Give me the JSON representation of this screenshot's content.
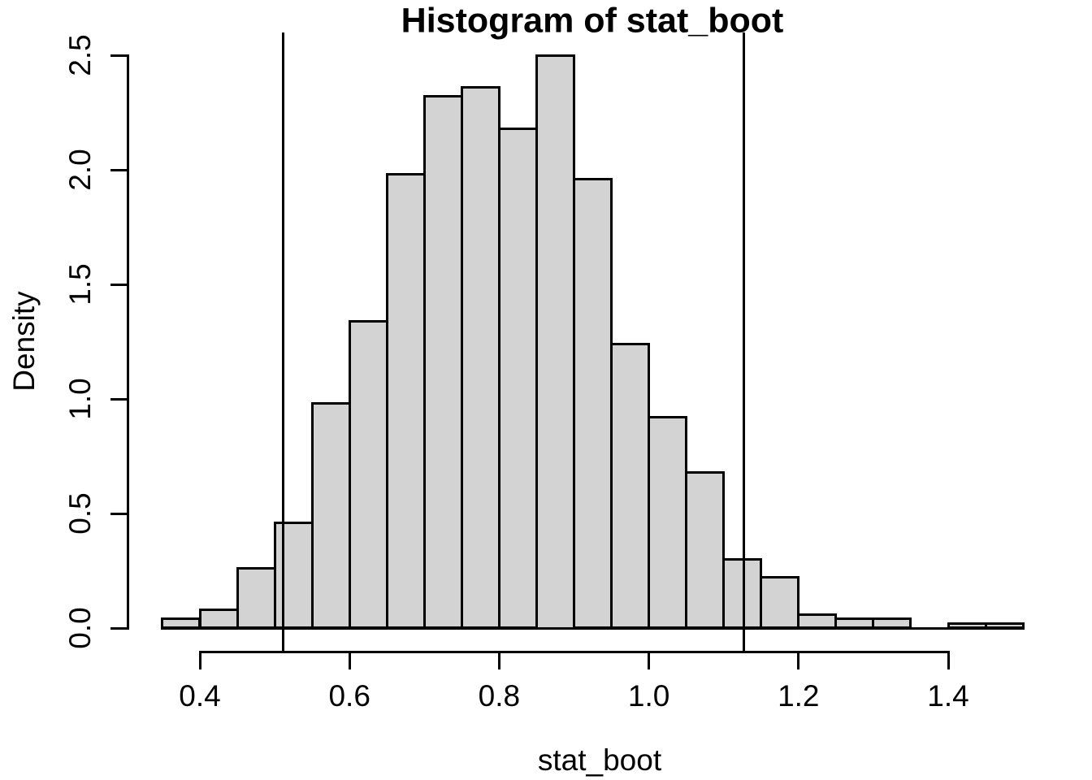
{
  "chart_data": {
    "type": "bar",
    "subtype": "histogram",
    "title": "Histogram of stat_boot",
    "xlabel": "stat_boot",
    "ylabel": "Density",
    "bin_start": 0.35,
    "bin_width": 0.05,
    "bin_edges": [
      0.35,
      0.4,
      0.45,
      0.5,
      0.55,
      0.6,
      0.65,
      0.7,
      0.75,
      0.8,
      0.85,
      0.9,
      0.95,
      1.0,
      1.05,
      1.1,
      1.15,
      1.2,
      1.25,
      1.3,
      1.35,
      1.4,
      1.45,
      1.5
    ],
    "densities": [
      0.04,
      0.08,
      0.26,
      0.46,
      0.98,
      1.34,
      1.98,
      2.32,
      2.36,
      2.18,
      2.5,
      1.96,
      1.24,
      0.92,
      0.68,
      0.3,
      0.22,
      0.06,
      0.04,
      0.04,
      0.0,
      0.02,
      0.02
    ],
    "x_ticks": [
      0.4,
      0.6,
      0.8,
      1.0,
      1.2,
      1.4
    ],
    "x_tick_labels": [
      "0.4",
      "0.6",
      "0.8",
      "1.0",
      "1.2",
      "1.4"
    ],
    "y_ticks": [
      0.0,
      0.5,
      1.0,
      1.5,
      2.0,
      2.5
    ],
    "y_tick_labels": [
      "0.0",
      "0.5",
      "1.0",
      "1.5",
      "2.0",
      "2.5"
    ],
    "vlines_x": [
      0.511,
      1.127
    ],
    "xlim": [
      0.35,
      1.5
    ],
    "ylim": [
      0.0,
      2.5
    ],
    "grid": "off",
    "legend": "none",
    "colors": {
      "bar_fill": "#d3d3d3",
      "bar_border": "#000000",
      "line": "#000000",
      "text": "#000000",
      "background": "#ffffff"
    }
  }
}
